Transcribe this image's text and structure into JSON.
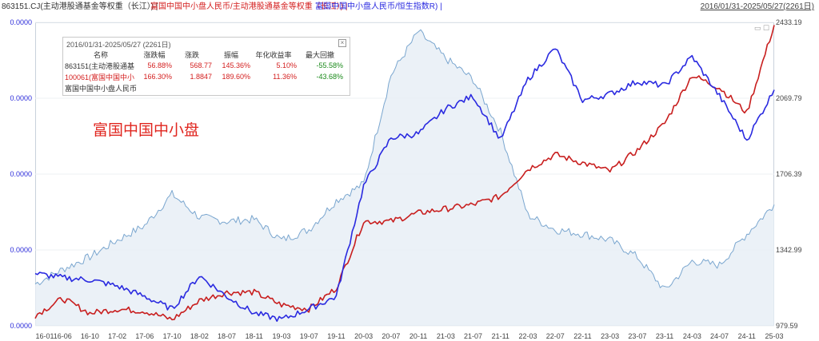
{
  "header": {
    "seg1": "863151.CJ(主动港股通基金等权重（长江）) | ",
    "seg2": "富国中国中小盘人民币/主动港股通基金等权重（长江）) | ",
    "seg3": "富国中国中小盘人民币/恒生指数R) |",
    "date_range": "2016/01/31-2025/05/27(2261日)"
  },
  "colors": {
    "blue": "#2a2ae0",
    "red": "#c81e1e",
    "lightblue": "#7aa6cf",
    "fill": "#e6edf5"
  },
  "stats": {
    "title": "2016/01/31-2025/05/27 (2261日)",
    "close_icon": "close-icon",
    "headers": [
      "名称",
      "涨跌幅",
      "涨跌",
      "振幅",
      "年化收益率",
      "最大回撤"
    ],
    "rows": [
      [
        "863151(主动港股通基",
        "56.88%",
        "568.77",
        "145.36%",
        "5.10%",
        "-55.58%"
      ],
      [
        "100061(富国中国中小",
        "166.30%",
        "1.8847",
        "189.60%",
        "11.36%",
        "-43.68%"
      ],
      [
        "富国中国中小盘人民币",
        "",
        "",
        "",
        "",
        ""
      ]
    ]
  },
  "annotation": "富国中国中小盘",
  "chart_data": {
    "type": "line",
    "x": [
      "16-01",
      "16-06",
      "16-10",
      "17-02",
      "17-06",
      "17-10",
      "18-02",
      "18-07",
      "18-11",
      "19-03",
      "19-07",
      "19-11",
      "20-03",
      "20-07",
      "20-11",
      "21-03",
      "21-07",
      "21-11",
      "22-03",
      "22-07",
      "22-11",
      "23-03",
      "23-07",
      "23-11",
      "24-03",
      "24-07",
      "24-11",
      "25-03"
    ],
    "y_left_ticks": [
      "0.0000",
      "0.0000",
      "0.0000",
      "0.0000",
      "0.0000"
    ],
    "y_right_ticks": [
      "2433.19",
      "2069.79",
      "1706.39",
      "1342.99",
      "979.59"
    ],
    "y_right_range": [
      979.59,
      2433.19
    ],
    "series": [
      {
        "color": "blue",
        "values": [
          1230,
          1210,
          1200,
          1170,
          1120,
          1060,
          1220,
          1120,
          1040,
          1010,
          1060,
          1120,
          1650,
          1880,
          1900,
          2020,
          2080,
          1870,
          2160,
          2310,
          2060,
          2090,
          2150,
          2130,
          2270,
          2080,
          1870,
          2110
        ]
      },
      {
        "color": "red",
        "values": [
          1030,
          1110,
          1040,
          1060,
          1050,
          1010,
          1100,
          1140,
          1140,
          1080,
          1060,
          1160,
          1480,
          1480,
          1520,
          1540,
          1560,
          1600,
          1730,
          1800,
          1760,
          1720,
          1820,
          1950,
          2180,
          2120,
          2000,
          2420
        ]
      },
      {
        "color": "lightblue",
        "values": [
          1180,
          1250,
          1310,
          1390,
          1460,
          1610,
          1500,
          1480,
          1490,
          1390,
          1440,
          1580,
          1660,
          2180,
          2390,
          2260,
          2160,
          1910,
          1510,
          1440,
          1420,
          1390,
          1310,
          1150,
          1290,
          1270,
          1420,
          1560
        ]
      }
    ]
  }
}
